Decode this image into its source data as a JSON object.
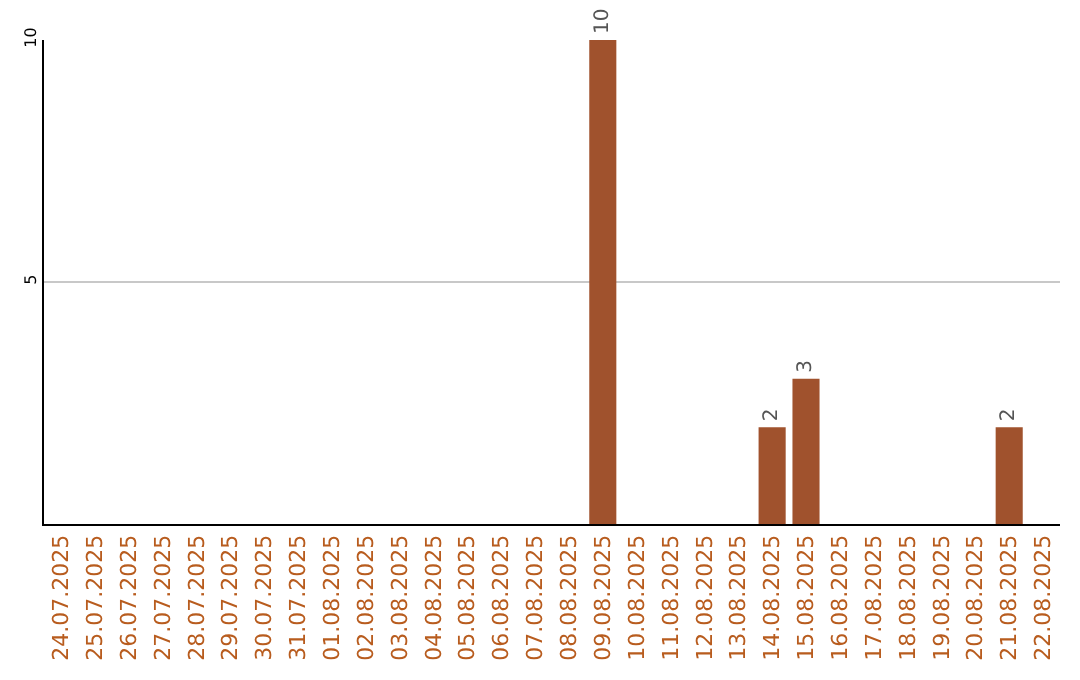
{
  "chart_data": {
    "type": "bar",
    "categories": [
      "24.07.2025",
      "25.07.2025",
      "26.07.2025",
      "27.07.2025",
      "28.07.2025",
      "29.07.2025",
      "30.07.2025",
      "31.07.2025",
      "01.08.2025",
      "02.08.2025",
      "03.08.2025",
      "04.08.2025",
      "05.08.2025",
      "06.08.2025",
      "07.08.2025",
      "08.08.2025",
      "09.08.2025",
      "10.08.2025",
      "11.08.2025",
      "12.08.2025",
      "13.08.2025",
      "14.08.2025",
      "15.08.2025",
      "16.08.2025",
      "17.08.2025",
      "18.08.2025",
      "19.08.2025",
      "20.08.2025",
      "21.08.2025",
      "22.08.2025"
    ],
    "values": [
      0,
      0,
      0,
      0,
      0,
      0,
      0,
      0,
      0,
      0,
      0,
      0,
      0,
      0,
      0,
      0,
      10,
      0,
      0,
      0,
      0,
      2,
      3,
      0,
      0,
      0,
      0,
      0,
      2,
      0
    ],
    "value_labels": [
      null,
      null,
      null,
      null,
      null,
      null,
      null,
      null,
      null,
      null,
      null,
      null,
      null,
      null,
      null,
      null,
      "10",
      null,
      null,
      null,
      null,
      "2",
      "3",
      null,
      null,
      null,
      null,
      null,
      "2",
      null
    ],
    "color": "#a0522d",
    "ylim": [
      0,
      10
    ],
    "yticks": [
      5,
      10
    ],
    "grid": "y",
    "legend": false
  }
}
